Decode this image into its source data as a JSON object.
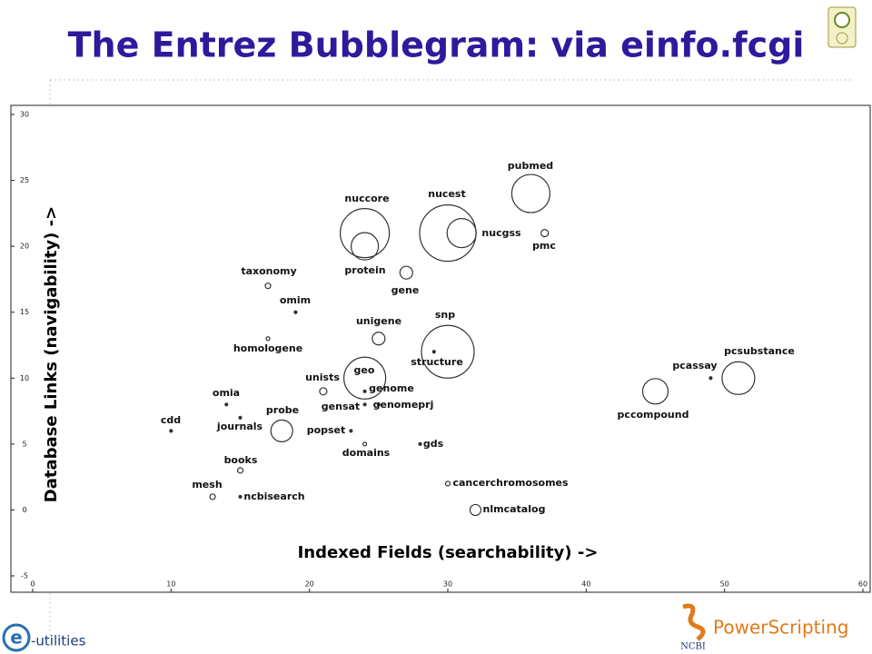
{
  "chart_data": {
    "type": "bubble",
    "title": "The Entrez Bubblegram: via einfo.fcgi",
    "x_label": "Indexed Fields (searchability) ->",
    "y_label": "Database Links (navigability) ->",
    "xlim": [
      0,
      60
    ],
    "ylim": [
      -5,
      30
    ],
    "xticks": [
      0,
      10,
      20,
      30,
      40,
      50,
      60
    ],
    "yticks": [
      -5,
      0,
      5,
      10,
      15,
      20,
      25,
      30
    ],
    "color": "#333333",
    "labels": [
      "pubmed",
      "pmc",
      "nucest",
      "nucgss",
      "nuccore",
      "protein",
      "gene",
      "taxonomy",
      "omim",
      "homologene",
      "unigene",
      "snp",
      "structure",
      "geo",
      "unists",
      "genome",
      "gensat",
      "genomeprj",
      "omia",
      "journals",
      "cdd",
      "probe",
      "popset",
      "domains",
      "gds",
      "books",
      "mesh",
      "ncbisearch",
      "cancerchromosomes",
      "nlmcatalog",
      "pcassay",
      "pcsubstance",
      "pccompound"
    ],
    "x": [
      36,
      37,
      30,
      31,
      24,
      24,
      27,
      17,
      19,
      17,
      25,
      30,
      29,
      24,
      21,
      24,
      24,
      25,
      14,
      15,
      10,
      18,
      23,
      24,
      28,
      15,
      13,
      15,
      30,
      32,
      49,
      51,
      45
    ],
    "y": [
      24,
      21,
      21,
      21,
      21,
      20,
      18,
      17,
      15,
      13,
      13,
      12,
      12,
      10,
      9,
      9,
      8,
      8,
      8,
      7,
      6,
      6,
      6,
      5,
      5,
      3,
      1,
      1,
      2,
      0,
      10,
      10,
      9
    ],
    "sizes": [
      21,
      4,
      31,
      16,
      27,
      15,
      7,
      3,
      1.5,
      2,
      7,
      29,
      1.5,
      23,
      4,
      1.5,
      1.5,
      1.5,
      1.5,
      1.5,
      1.5,
      12,
      1.5,
      2,
      1.5,
      3,
      3,
      1.5,
      2.5,
      6,
      1.5,
      18,
      14
    ]
  },
  "footer": {
    "logo_letter": "e",
    "left": "-utilities",
    "right": "PowerScripting",
    "ncbi": "NCBI"
  }
}
